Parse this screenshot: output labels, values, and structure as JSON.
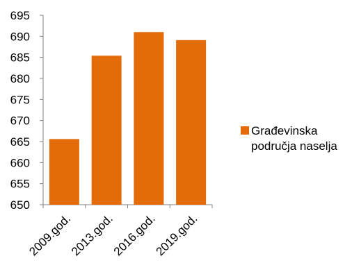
{
  "colors": {
    "bar": "#E36C09",
    "axis": "#808080",
    "text": "#000000"
  },
  "chart_data": {
    "type": "bar",
    "categories": [
      "2009.god.",
      "2013.god.",
      "2016.god.",
      "2019.god."
    ],
    "series": [
      {
        "name": "Građevinska područja naselja",
        "values": [
          665.6,
          685.4,
          691.0,
          689.1
        ]
      }
    ],
    "y_ticks": [
      "650",
      "655",
      "660",
      "665",
      "670",
      "675",
      "680",
      "685",
      "690",
      "695"
    ],
    "ylim": [
      650,
      695
    ],
    "grid": false,
    "legend_position": "right"
  },
  "legend": {
    "label": "Građevinska područja naselja"
  }
}
